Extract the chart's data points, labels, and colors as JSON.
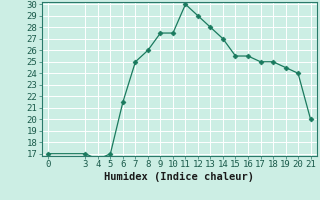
{
  "x": [
    0,
    3,
    4,
    5,
    6,
    7,
    8,
    9,
    10,
    11,
    12,
    13,
    14,
    15,
    16,
    17,
    18,
    19,
    20,
    21
  ],
  "y": [
    17,
    17,
    16.5,
    17,
    21.5,
    25,
    26,
    27.5,
    27.5,
    30,
    29,
    28,
    27,
    25.5,
    25.5,
    25,
    25,
    24.5,
    24,
    20
  ],
  "xlabel": "Humidex (Indice chaleur)",
  "xlim_min": -0.5,
  "xlim_max": 21.5,
  "ylim_min": 17,
  "ylim_max": 30,
  "xticks": [
    0,
    3,
    4,
    5,
    6,
    7,
    8,
    9,
    10,
    11,
    12,
    13,
    14,
    15,
    16,
    17,
    18,
    19,
    20,
    21
  ],
  "yticks": [
    17,
    18,
    19,
    20,
    21,
    22,
    23,
    24,
    25,
    26,
    27,
    28,
    29,
    30
  ],
  "line_color": "#1a7a5e",
  "marker": "D",
  "marker_size": 2.5,
  "bg_color": "#cceee4",
  "grid_color": "#ffffff",
  "label_fontsize": 7.5,
  "tick_fontsize": 6.5
}
